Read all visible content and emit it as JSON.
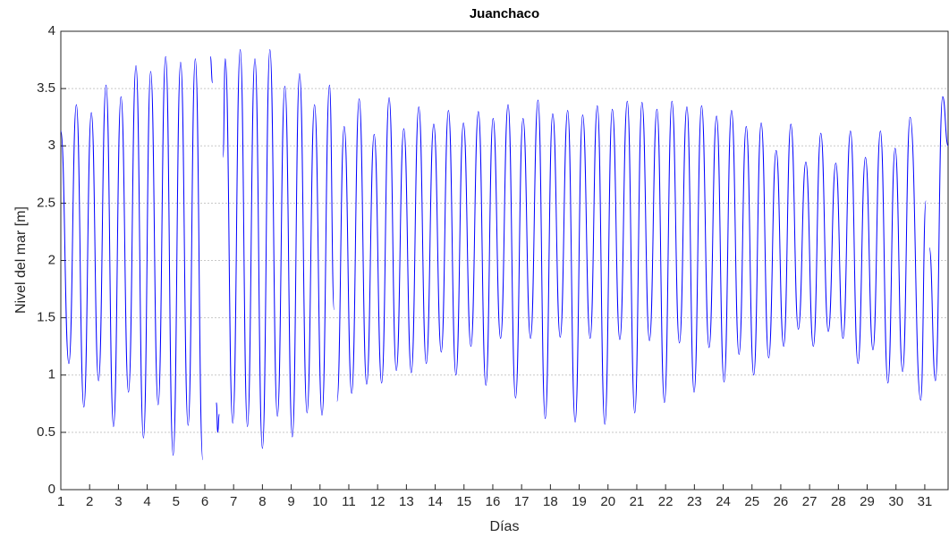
{
  "chart_data": {
    "type": "line",
    "title": "Juanchaco",
    "xlabel": "Días",
    "ylabel": "Nivel del mar [m]",
    "xlim": [
      1,
      31.81
    ],
    "ylim": [
      0,
      4
    ],
    "xticks": [
      1,
      2,
      3,
      4,
      5,
      6,
      7,
      8,
      9,
      10,
      11,
      12,
      13,
      14,
      15,
      16,
      17,
      18,
      19,
      20,
      21,
      22,
      23,
      24,
      25,
      26,
      27,
      28,
      29,
      30,
      31
    ],
    "yticks": [
      0,
      0.5,
      1,
      1.5,
      2,
      2.5,
      3,
      3.5,
      4
    ],
    "grid": true,
    "series": [
      {
        "color": "#0000ff",
        "x": [
          1.0,
          1.28,
          1.54,
          1.8,
          2.06,
          2.31,
          2.57,
          2.83,
          3.09,
          3.35,
          3.61,
          3.87,
          4.12,
          4.38,
          4.64,
          4.9,
          5.16,
          5.42,
          5.67,
          5.93,
          6.06,
          6.19,
          6.27,
          6.35,
          6.4,
          6.45,
          6.5,
          6.58,
          6.63,
          6.71,
          6.97,
          7.23,
          7.48,
          7.74,
          8.0,
          8.26,
          8.52,
          8.78,
          9.04,
          9.29,
          9.55,
          9.81,
          10.07,
          10.33,
          10.49,
          10.52,
          10.59,
          10.84,
          11.1,
          11.36,
          11.62,
          11.88,
          12.14,
          12.4,
          12.65,
          12.91,
          13.17,
          13.43,
          13.69,
          13.95,
          14.21,
          14.46,
          14.72,
          14.98,
          15.24,
          15.5,
          15.76,
          16.01,
          16.27,
          16.53,
          16.79,
          17.05,
          17.31,
          17.57,
          17.82,
          18.08,
          18.34,
          18.6,
          18.86,
          19.12,
          19.38,
          19.63,
          19.89,
          20.15,
          20.41,
          20.67,
          20.93,
          21.18,
          21.44,
          21.7,
          21.96,
          22.22,
          22.48,
          22.74,
          22.99,
          23.25,
          23.51,
          23.77,
          24.03,
          24.29,
          24.55,
          24.8,
          25.06,
          25.32,
          25.58,
          25.84,
          26.1,
          26.35,
          26.61,
          26.87,
          27.13,
          27.39,
          27.65,
          27.91,
          28.16,
          28.42,
          28.68,
          28.94,
          29.2,
          29.46,
          29.72,
          29.97,
          30.23,
          30.49,
          30.86,
          31.04,
          31.1,
          31.16,
          31.37,
          31.62,
          31.81
        ],
        "values": [
          3.13,
          1.1,
          3.36,
          0.72,
          3.29,
          0.95,
          3.53,
          0.55,
          3.43,
          0.85,
          3.7,
          0.45,
          3.65,
          0.74,
          3.78,
          0.3,
          3.73,
          0.56,
          3.76,
          0.26,
          null,
          3.78,
          3.55,
          null,
          0.76,
          0.5,
          0.66,
          null,
          2.9,
          3.76,
          0.58,
          3.84,
          0.55,
          3.76,
          0.36,
          3.84,
          0.64,
          3.52,
          0.46,
          3.63,
          0.67,
          3.36,
          0.65,
          3.53,
          1.57,
          null,
          0.77,
          3.17,
          0.84,
          3.41,
          0.92,
          3.1,
          0.93,
          3.42,
          1.04,
          3.15,
          1.02,
          3.34,
          1.1,
          3.19,
          1.2,
          3.31,
          1.0,
          3.2,
          1.25,
          3.3,
          0.91,
          3.24,
          1.32,
          3.36,
          0.8,
          3.24,
          1.32,
          3.4,
          0.62,
          3.28,
          1.33,
          3.31,
          0.59,
          3.27,
          1.32,
          3.35,
          0.57,
          3.32,
          1.31,
          3.39,
          0.67,
          3.38,
          1.3,
          3.32,
          0.76,
          3.39,
          1.28,
          3.34,
          0.85,
          3.35,
          1.24,
          3.26,
          0.94,
          3.31,
          1.18,
          3.17,
          1.0,
          3.2,
          1.15,
          2.96,
          1.25,
          3.19,
          1.4,
          2.86,
          1.25,
          3.11,
          1.38,
          2.85,
          1.32,
          3.13,
          1.1,
          2.9,
          1.22,
          3.13,
          0.93,
          2.98,
          1.03,
          3.25,
          0.78,
          2.52,
          null,
          2.11,
          0.95,
          3.43,
          3.0
        ]
      }
    ]
  }
}
